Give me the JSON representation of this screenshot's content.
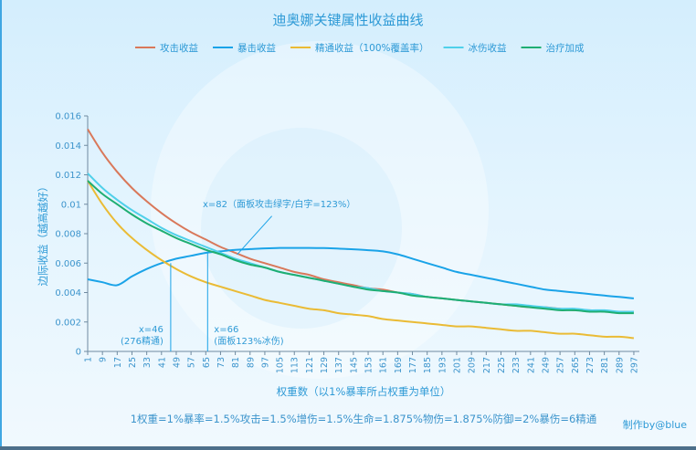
{
  "chart_data": {
    "type": "line",
    "title": "迪奥娜关键属性收益曲线",
    "xlabel": "权重数（以1%暴率所占权重为单位）",
    "ylabel": "边际收益（越高越好）",
    "xlim": [
      1,
      300
    ],
    "ylim": [
      0,
      0.016
    ],
    "grid": false,
    "legend_position": "top",
    "x_ticks": [
      1,
      9,
      17,
      25,
      33,
      41,
      49,
      57,
      65,
      73,
      81,
      89,
      97,
      105,
      113,
      121,
      129,
      137,
      145,
      153,
      161,
      169,
      177,
      185,
      193,
      201,
      209,
      217,
      225,
      233,
      241,
      249,
      257,
      265,
      273,
      281,
      289,
      297
    ],
    "y_ticks": [
      "0",
      "0.002",
      "0.004",
      "0.006",
      "0.008",
      "0.01",
      "0.012",
      "0.014",
      "0.016"
    ],
    "x": [
      1,
      9,
      17,
      25,
      33,
      41,
      49,
      57,
      65,
      73,
      81,
      89,
      97,
      105,
      113,
      121,
      129,
      137,
      145,
      153,
      161,
      169,
      177,
      185,
      193,
      201,
      209,
      217,
      225,
      233,
      241,
      249,
      257,
      265,
      273,
      281,
      289,
      297
    ],
    "series": [
      {
        "name": "攻击收益",
        "color": "#d9785a",
        "values": [
          0.0151,
          0.0135,
          0.0122,
          0.0111,
          0.0102,
          0.0094,
          0.0087,
          0.0081,
          0.0076,
          0.0071,
          0.0067,
          0.0063,
          0.006,
          0.0057,
          0.0054,
          0.0052,
          0.0049,
          0.0047,
          0.0045,
          0.0043,
          0.0042,
          0.004,
          0.0039,
          0.0037,
          0.0036,
          0.0035,
          0.0034,
          0.0033,
          0.0032,
          0.0031,
          0.003,
          0.003,
          0.0029,
          0.0028,
          0.0028,
          0.0027,
          0.0027,
          0.0027
        ]
      },
      {
        "name": "暴击收益",
        "color": "#1aa3e8",
        "values": [
          0.0049,
          0.0047,
          0.0045,
          0.0051,
          0.0056,
          0.006,
          0.0063,
          0.0065,
          0.0067,
          0.0068,
          0.0069,
          0.00695,
          0.007,
          0.00703,
          0.00703,
          0.00703,
          0.00702,
          0.00698,
          0.00694,
          0.00688,
          0.0068,
          0.0066,
          0.0063,
          0.006,
          0.0057,
          0.0054,
          0.0052,
          0.005,
          0.0048,
          0.0046,
          0.0044,
          0.0042,
          0.0041,
          0.004,
          0.0039,
          0.0038,
          0.0037,
          0.0036
        ]
      },
      {
        "name": "精通收益（100%覆盖率）",
        "color": "#eabb35",
        "values": [
          0.0116,
          0.01,
          0.0087,
          0.0077,
          0.0069,
          0.0062,
          0.0056,
          0.0051,
          0.0047,
          0.0044,
          0.0041,
          0.0038,
          0.0035,
          0.0033,
          0.0031,
          0.0029,
          0.0028,
          0.0026,
          0.0025,
          0.0024,
          0.0022,
          0.0021,
          0.002,
          0.0019,
          0.0018,
          0.0017,
          0.0017,
          0.0016,
          0.0015,
          0.0014,
          0.0014,
          0.0013,
          0.0012,
          0.0012,
          0.0011,
          0.001,
          0.001,
          0.0009
        ]
      },
      {
        "name": "冰伤收益",
        "color": "#4fd0ea",
        "values": [
          0.0121,
          0.0111,
          0.0103,
          0.0096,
          0.009,
          0.0084,
          0.0079,
          0.0075,
          0.0071,
          0.0067,
          0.0063,
          0.006,
          0.0057,
          0.0054,
          0.0052,
          0.005,
          0.0048,
          0.0046,
          0.0044,
          0.0043,
          0.0041,
          0.004,
          0.0039,
          0.0037,
          0.0036,
          0.0035,
          0.0034,
          0.0033,
          0.0032,
          0.0032,
          0.0031,
          0.003,
          0.0029,
          0.0029,
          0.0028,
          0.0028,
          0.0027,
          0.0027
        ]
      },
      {
        "name": "治疗加成",
        "color": "#1fae72",
        "values": [
          0.0116,
          0.0107,
          0.01,
          0.0093,
          0.0087,
          0.0082,
          0.0077,
          0.0073,
          0.0069,
          0.0066,
          0.0062,
          0.0059,
          0.0057,
          0.0054,
          0.0052,
          0.005,
          0.0048,
          0.0046,
          0.0044,
          0.0042,
          0.0041,
          0.004,
          0.0038,
          0.0037,
          0.0036,
          0.0035,
          0.0034,
          0.0033,
          0.0032,
          0.0031,
          0.003,
          0.0029,
          0.0028,
          0.0028,
          0.0027,
          0.0027,
          0.0026,
          0.0026
        ]
      }
    ],
    "annotations": [
      {
        "x": 82,
        "y": 0.0067,
        "y_end": 0.0072,
        "lines": [
          "x=82（面板攻击绿字/白字=123%）"
        ]
      },
      {
        "x": 46,
        "y": 0.006,
        "lines": [
          "x=46",
          "(276精通)"
        ]
      },
      {
        "x": 66,
        "y": 0.0067,
        "lines": [
          "x=66",
          "(面板123%冰伤)"
        ]
      }
    ]
  },
  "footer": {
    "formula": "1权重=1%暴率=1.5%攻击=1.5%增伤=1.5%生命=1.875%物伤=1.875%防御=2%暴伤=6精通",
    "credit": "制作by@blue"
  }
}
